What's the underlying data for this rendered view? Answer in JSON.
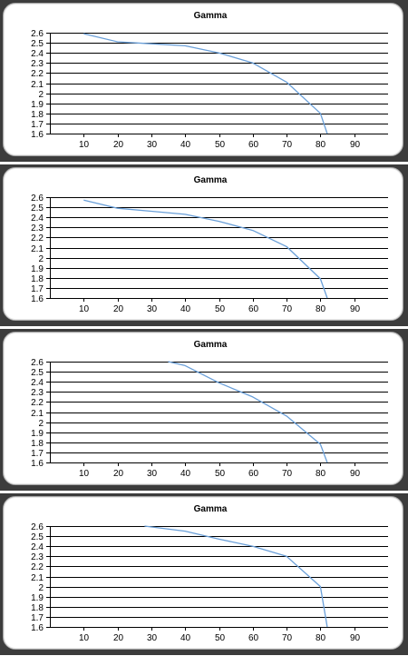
{
  "colors": {
    "line": "#6a9fd8",
    "grid": "#000000",
    "frame": "#3c3c3c",
    "card": "#ffffff"
  },
  "chart_data": [
    {
      "type": "line",
      "title": "Gamma",
      "xlabel": "",
      "ylabel": "",
      "xlim": [
        0,
        100
      ],
      "ylim": [
        1.6,
        2.6
      ],
      "xticks": [
        10,
        20,
        30,
        40,
        50,
        60,
        70,
        80,
        90
      ],
      "yticks": [
        2.6,
        2.5,
        2.4,
        2.3,
        2.2,
        2.1,
        2,
        1.9,
        1.8,
        1.7,
        1.6
      ],
      "grid": "horizontal",
      "legend": "none",
      "x": [
        10,
        20,
        30,
        40,
        50,
        60,
        70,
        80,
        82
      ],
      "values": [
        2.59,
        2.51,
        2.49,
        2.47,
        2.4,
        2.3,
        2.11,
        1.8,
        1.6
      ]
    },
    {
      "type": "line",
      "title": "Gamma",
      "xlabel": "",
      "ylabel": "",
      "xlim": [
        0,
        100
      ],
      "ylim": [
        1.6,
        2.6
      ],
      "xticks": [
        10,
        20,
        30,
        40,
        50,
        60,
        70,
        80,
        90
      ],
      "yticks": [
        2.6,
        2.5,
        2.4,
        2.3,
        2.2,
        2.1,
        2,
        1.9,
        1.8,
        1.7,
        1.6
      ],
      "grid": "horizontal",
      "legend": "none",
      "x": [
        10,
        20,
        30,
        40,
        50,
        60,
        70,
        80,
        82
      ],
      "values": [
        2.57,
        2.49,
        2.46,
        2.43,
        2.36,
        2.27,
        2.11,
        1.79,
        1.6
      ]
    },
    {
      "type": "line",
      "title": "Gamma",
      "xlabel": "",
      "ylabel": "",
      "xlim": [
        0,
        100
      ],
      "ylim": [
        1.6,
        2.6
      ],
      "xticks": [
        10,
        20,
        30,
        40,
        50,
        60,
        70,
        80,
        90
      ],
      "yticks": [
        2.6,
        2.5,
        2.4,
        2.3,
        2.2,
        2.1,
        2,
        1.9,
        1.8,
        1.7,
        1.6
      ],
      "grid": "horizontal",
      "legend": "none",
      "x": [
        35,
        40,
        50,
        60,
        70,
        80,
        82
      ],
      "values": [
        2.6,
        2.56,
        2.39,
        2.25,
        2.06,
        1.78,
        1.6
      ]
    },
    {
      "type": "line",
      "title": "Gamma",
      "xlabel": "",
      "ylabel": "",
      "xlim": [
        0,
        100
      ],
      "ylim": [
        1.6,
        2.6
      ],
      "xticks": [
        10,
        20,
        30,
        40,
        50,
        60,
        70,
        80,
        90
      ],
      "yticks": [
        2.6,
        2.5,
        2.4,
        2.3,
        2.2,
        2.1,
        2,
        1.9,
        1.8,
        1.7,
        1.6
      ],
      "grid": "horizontal",
      "legend": "none",
      "x": [
        28,
        40,
        50,
        60,
        70,
        80,
        82
      ],
      "values": [
        2.6,
        2.55,
        2.47,
        2.4,
        2.3,
        2.0,
        1.6
      ]
    }
  ]
}
